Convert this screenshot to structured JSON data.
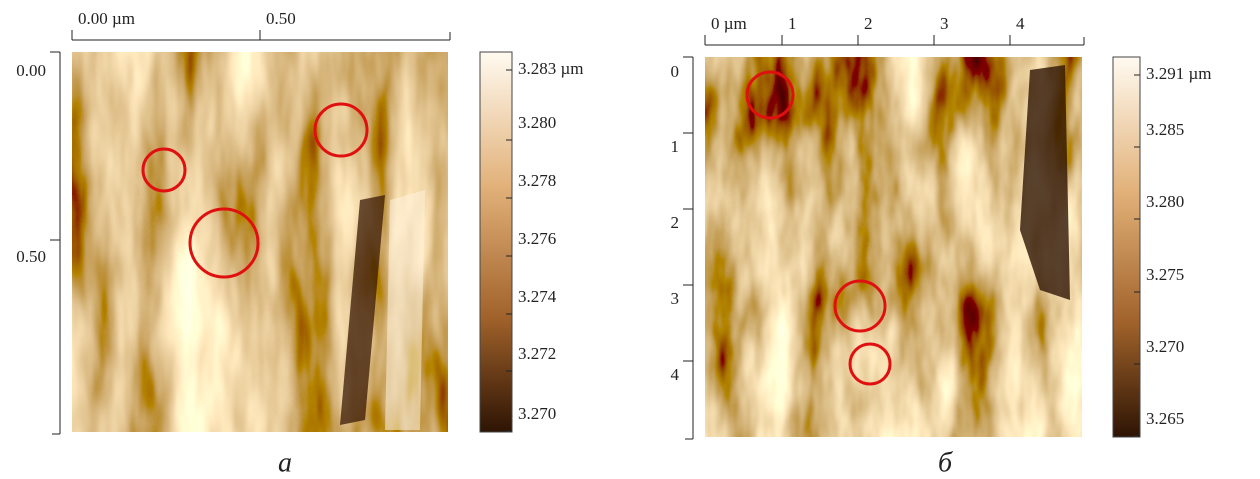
{
  "panels": [
    {
      "caption": "а",
      "x_ticks": [
        "0.00 µm",
        "0.50"
      ],
      "y_ticks": [
        "0.00",
        "0.50"
      ],
      "colorbar_labels": [
        "3.283 µm",
        "3.280",
        "3.278",
        "3.276",
        "3.274",
        "3.272",
        "3.270"
      ]
    },
    {
      "caption": "б",
      "x_ticks": [
        "0 µm",
        "1",
        "2",
        "3",
        "4"
      ],
      "y_ticks": [
        "0",
        "1",
        "2",
        "3",
        "4"
      ],
      "colorbar_labels": [
        "3.291 µm",
        "3.285",
        "3.280",
        "3.275",
        "3.270",
        "3.265"
      ]
    }
  ]
}
